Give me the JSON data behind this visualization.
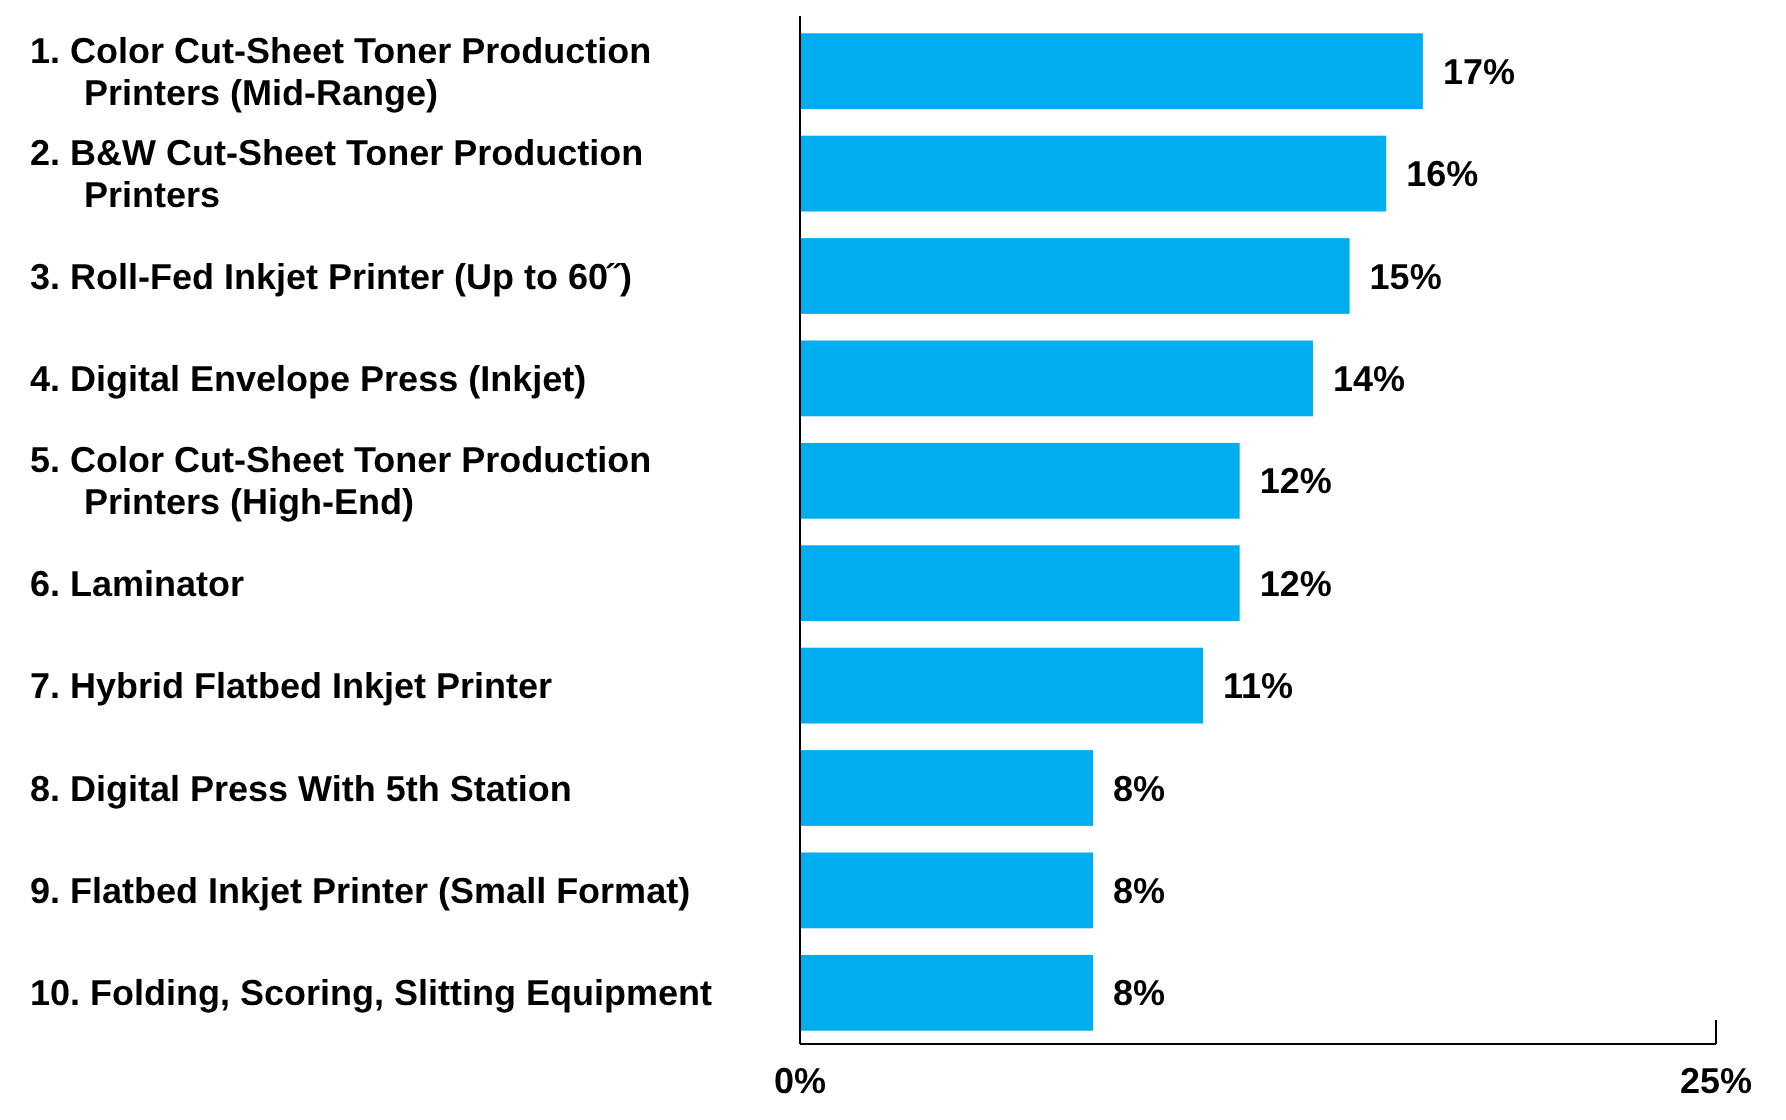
{
  "chart_data": {
    "type": "bar",
    "orientation": "horizontal",
    "categories": [
      "1. Color Cut-Sheet Toner Production Printers (Mid-Range)",
      "2. B&W Cut-Sheet Toner Production Printers",
      "3. Roll-Fed Inkjet Printer (Up to 60˝)",
      "4. Digital Envelope Press (Inkjet)",
      "5. Color Cut-Sheet Toner Production Printers (High-End)",
      "6. Laminator",
      "7. Hybrid Flatbed Inkjet Printer",
      "8. Digital Press With 5th Station",
      "9. Flatbed Inkjet Printer (Small Format)",
      "10. Folding, Scoring, Slitting Equipment"
    ],
    "values": [
      17,
      16,
      15,
      14,
      12,
      12,
      11,
      8,
      8,
      8
    ],
    "value_labels": [
      "17%",
      "16%",
      "15%",
      "14%",
      "12%",
      "12%",
      "11%",
      "8%",
      "8%",
      "8%"
    ],
    "color": "#00aeef",
    "xlim": [
      0,
      25
    ],
    "xticks": [
      {
        "value": 0,
        "label": "0%"
      },
      {
        "value": 25,
        "label": "25%"
      }
    ],
    "grid": false
  }
}
